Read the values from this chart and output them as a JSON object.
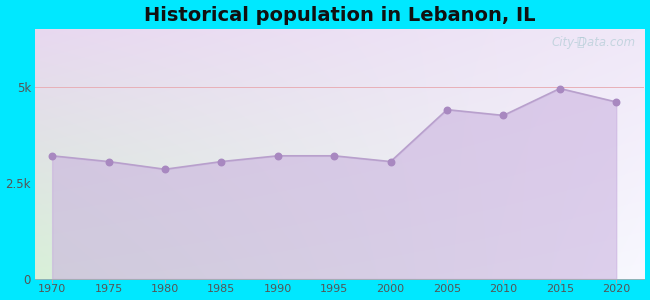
{
  "title": "Historical population in Lebanon, IL",
  "years": [
    1970,
    1975,
    1980,
    1985,
    1990,
    1995,
    2000,
    2005,
    2010,
    2015,
    2020
  ],
  "population": [
    3200,
    3050,
    2850,
    3050,
    3200,
    3200,
    3050,
    4400,
    4250,
    4950,
    4600
  ],
  "line_color": "#b8a0cc",
  "fill_color": "#c8aede",
  "fill_alpha": 0.55,
  "marker_color": "#a888c0",
  "marker_size": 22,
  "bg_outer": "#00e8ff",
  "grid_line_color": "#e8b0b8",
  "yticks": [
    0,
    2500,
    5000
  ],
  "ytick_labels": [
    "0",
    "2.5k",
    "5k"
  ],
  "ylim": [
    0,
    6500
  ],
  "xlim": [
    1968.5,
    2022.5
  ],
  "title_fontsize": 14,
  "watermark_text": "City-Data.com",
  "watermark_color": "#a8c8d0",
  "watermark_alpha": 0.6,
  "bg_grad_top_left": "#d8f0d8",
  "bg_grad_top_right": "#f0f0f8",
  "bg_grad_bottom": "#e8d8f0"
}
